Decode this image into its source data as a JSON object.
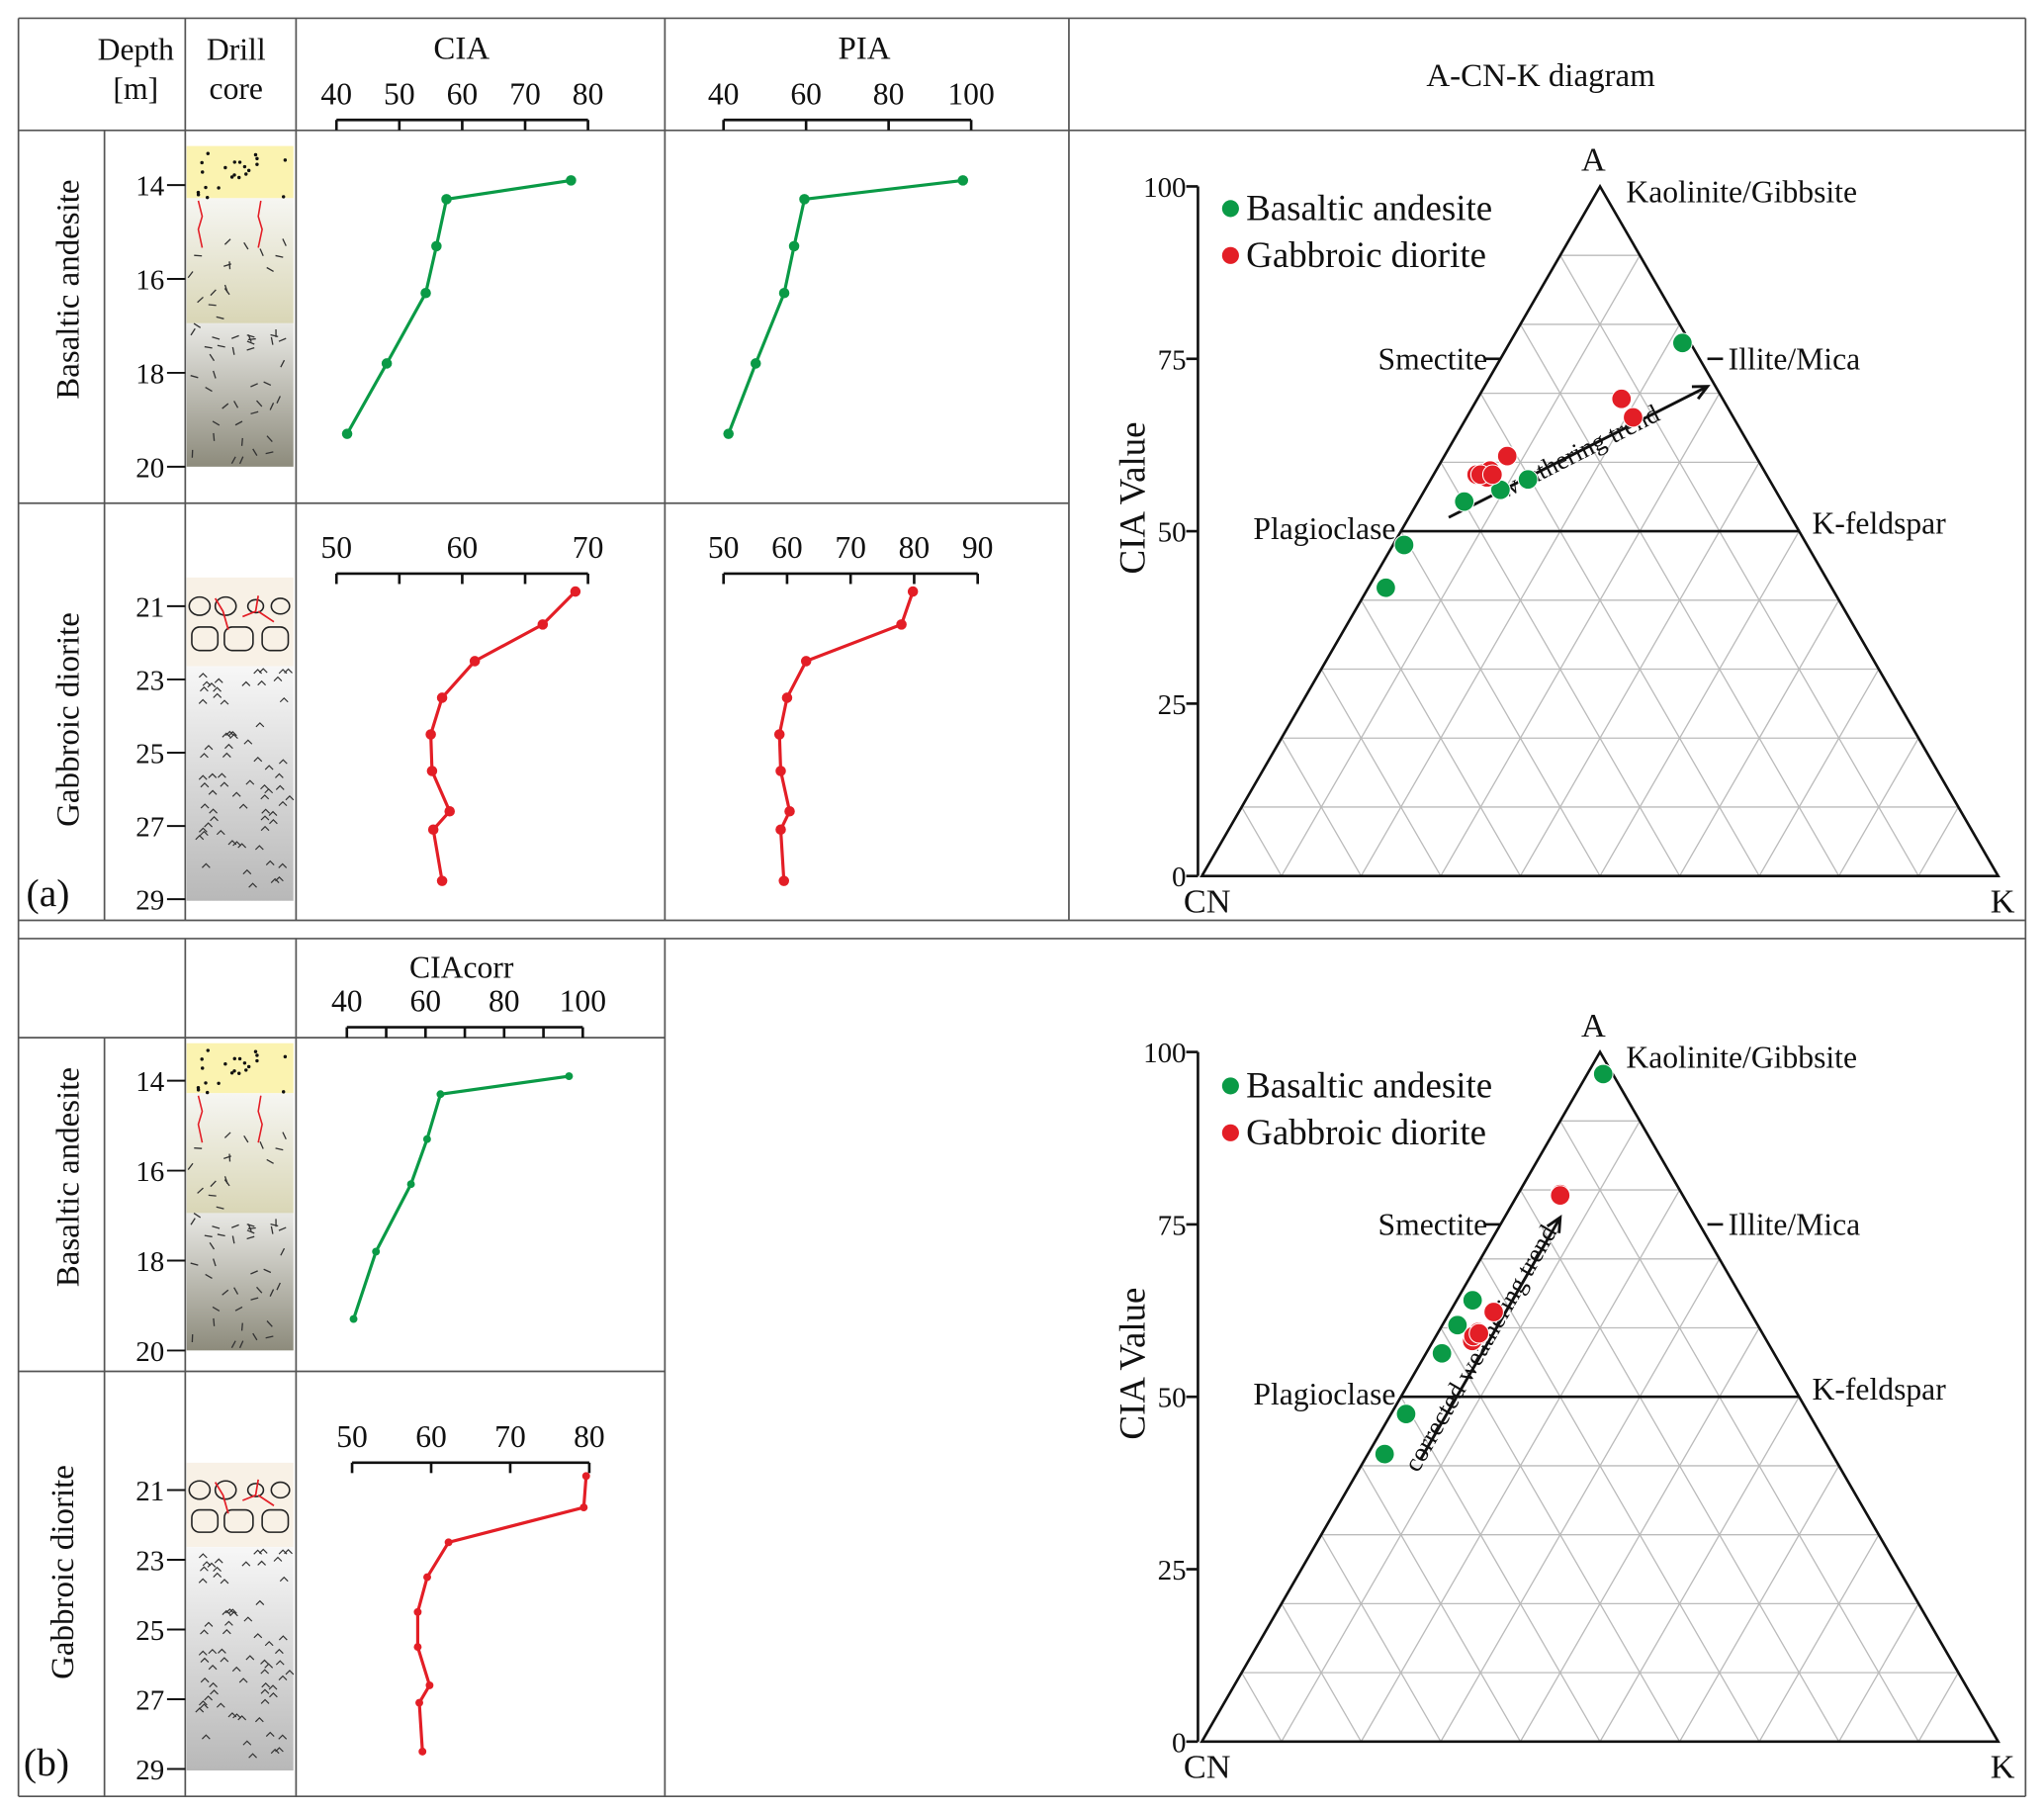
{
  "panel_labels": [
    "(a)",
    "(b)"
  ],
  "headers": {
    "depth": [
      "Depth",
      "[m]"
    ],
    "drill_core": [
      "Drill",
      "core"
    ]
  },
  "units": [
    "Basaltic andesite",
    "Gabbroic diorite"
  ],
  "colors": {
    "basaltic_andesite": "#0a9a46",
    "gabbroic_diorite": "#e31e26",
    "grid": "#bbbbbb"
  },
  "depth_ticks": {
    "basaltic": [
      "14",
      "16",
      "18",
      "20"
    ],
    "gabbroic": [
      "21",
      "23",
      "25",
      "27",
      "29"
    ]
  },
  "ternary_title": "A-CN-K diagram",
  "chart_data": [
    {
      "id": "cia_basaltic",
      "type": "line",
      "title": "CIA",
      "xlim": [
        40,
        80
      ],
      "x_ticks": [
        "40",
        "50",
        "60",
        "70",
        "80"
      ],
      "ylabel": "Depth [m]",
      "color": "#0a9a46",
      "depth": [
        13.9,
        14.3,
        15.3,
        16.3,
        17.8,
        19.3
      ],
      "values": [
        77.3,
        57.5,
        55.9,
        54.2,
        48.0,
        41.7
      ]
    },
    {
      "id": "pia_basaltic",
      "type": "line",
      "title": "PIA",
      "xlim": [
        40,
        100
      ],
      "x_ticks": [
        "40",
        "60",
        "80",
        "100"
      ],
      "color": "#0a9a46",
      "depth": [
        13.9,
        14.3,
        15.3,
        16.3,
        17.8,
        19.3
      ],
      "values": [
        98.0,
        59.6,
        57.1,
        54.7,
        47.8,
        41.2
      ]
    },
    {
      "id": "cia_gabbroic",
      "type": "line",
      "xlim": [
        50,
        70
      ],
      "x_ticks": [
        "50",
        "60",
        "70"
      ],
      "color": "#e31e26",
      "depth": [
        20.6,
        21.5,
        22.5,
        23.5,
        24.5,
        25.5,
        26.6,
        27.1,
        28.5
      ],
      "values": [
        69.0,
        66.4,
        61.0,
        58.4,
        57.5,
        57.6,
        59.0,
        57.7,
        58.4
      ]
    },
    {
      "id": "pia_gabbroic",
      "type": "line",
      "xlim": [
        50,
        90
      ],
      "x_ticks": [
        "50",
        "60",
        "70",
        "80",
        "90"
      ],
      "color": "#e31e26",
      "depth": [
        20.6,
        21.5,
        22.5,
        23.5,
        24.5,
        25.5,
        26.6,
        27.1,
        28.5
      ],
      "values": [
        79.8,
        78.0,
        63.0,
        60.0,
        58.8,
        59.0,
        60.4,
        59.0,
        59.5
      ]
    },
    {
      "id": "ciacorr_basaltic",
      "type": "line",
      "title": "CIAcorr",
      "xlim": [
        40,
        100
      ],
      "x_ticks": [
        "40",
        "60",
        "80",
        "100"
      ],
      "color": "#0a9a46",
      "depth": [
        13.9,
        14.3,
        15.3,
        16.3,
        17.8,
        19.3
      ],
      "values": [
        96.5,
        63.8,
        60.4,
        56.3,
        47.4,
        41.7
      ]
    },
    {
      "id": "ciacorr_gabbroic",
      "type": "line",
      "xlim": [
        50,
        80
      ],
      "x_ticks": [
        "50",
        "60",
        "70",
        "80"
      ],
      "color": "#e31e26",
      "depth": [
        20.6,
        21.5,
        22.5,
        23.5,
        24.5,
        25.5,
        26.6,
        27.1,
        28.5
      ],
      "values": [
        79.6,
        79.3,
        62.2,
        59.5,
        58.3,
        58.3,
        59.8,
        58.5,
        58.9
      ]
    },
    {
      "id": "ternary_a",
      "type": "scatter",
      "ylabel": "CIA Value",
      "y_ticks": [
        "100",
        "75",
        "50",
        "25",
        "0"
      ],
      "vertices": {
        "top": "A",
        "left": "CN",
        "right": "K"
      },
      "mineral_labels": {
        "kaolinite": "Kaolinite/Gibbsite",
        "smectite": "Smectite",
        "illite": "Illite/Mica",
        "plagioclase": "Plagioclase",
        "kfeldspar": "K-feldspar"
      },
      "trend_label": "weathering trend",
      "series": [
        {
          "name": "Basaltic andesite",
          "color": "#0a9a46",
          "points": [
            {
              "A": 77.3,
              "K": 21.7
            },
            {
              "A": 57.5,
              "K": 12.2
            },
            {
              "A": 56.0,
              "K": 9.5
            },
            {
              "A": 54.3,
              "K": 5.8
            },
            {
              "A": 48.0,
              "K": 1.4
            },
            {
              "A": 41.8,
              "K": 2.2
            }
          ]
        },
        {
          "name": "Gabbroic diorite",
          "color": "#e31e26",
          "points": [
            {
              "A": 69.2,
              "K": 18.1
            },
            {
              "A": 66.5,
              "K": 20.9
            },
            {
              "A": 60.9,
              "K": 7.9
            },
            {
              "A": 58.2,
              "K": 5.4
            },
            {
              "A": 58.4,
              "K": 6.1
            },
            {
              "A": 58.8,
              "K": 6.8
            },
            {
              "A": 57.8,
              "K": 6.9
            },
            {
              "A": 58.2,
              "K": 5.9
            },
            {
              "A": 58.2,
              "K": 7.4
            }
          ]
        }
      ]
    },
    {
      "id": "ternary_b",
      "type": "scatter",
      "ylabel": "CIA Value",
      "y_ticks": [
        "100",
        "75",
        "50",
        "25",
        "0"
      ],
      "vertices": {
        "top": "A",
        "left": "CN",
        "right": "K"
      },
      "mineral_labels": {
        "kaolinite": "Kaolinite/Gibbsite",
        "smectite": "Smectite",
        "illite": "Illite/Mica",
        "plagioclase": "Plagioclase",
        "kfeldspar": "K-feldspar"
      },
      "trend_label": "corrected weathering trend",
      "series": [
        {
          "name": "Basaltic andesite",
          "color": "#0a9a46",
          "points": [
            {
              "A": 96.8,
              "K": 2.0
            },
            {
              "A": 64.0,
              "K": 2.0
            },
            {
              "A": 60.4,
              "K": 1.9
            },
            {
              "A": 56.3,
              "K": 2.0
            },
            {
              "A": 47.5,
              "K": 1.9
            },
            {
              "A": 41.7,
              "K": 2.1
            }
          ]
        },
        {
          "name": "Gabbroic diorite",
          "color": "#e31e26",
          "points": [
            {
              "A": 79.4,
              "K": 5.3
            },
            {
              "A": 79.2,
              "K": 5.4
            },
            {
              "A": 62.3,
              "K": 5.5
            },
            {
              "A": 59.4,
              "K": 5.0
            },
            {
              "A": 58.5,
              "K": 5.1
            },
            {
              "A": 59.0,
              "K": 5.3
            },
            {
              "A": 58.1,
              "K": 4.9
            },
            {
              "A": 58.8,
              "K": 4.7
            },
            {
              "A": 59.2,
              "K": 5.2
            }
          ]
        }
      ]
    }
  ]
}
